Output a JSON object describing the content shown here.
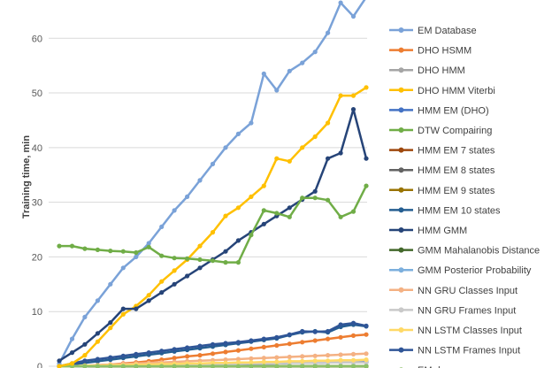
{
  "chart_data": {
    "type": "line",
    "ylabel": "Training time, min",
    "ylim": [
      0,
      67
    ],
    "yticks": [
      0,
      10,
      20,
      30,
      40,
      50,
      60
    ],
    "grid": true,
    "legend_position": "right",
    "series": [
      {
        "name": "EM Database",
        "color": "#7aa2d8",
        "values": []
      },
      {
        "name": "DHO HSMM",
        "color": "#ed7d31",
        "values": []
      },
      {
        "name": "DHO HMM",
        "color": "#a5a5a5",
        "values": []
      },
      {
        "name": "DHO HMM Viterbi",
        "color": "#ffc000",
        "values": []
      },
      {
        "name": "HMM EM (DHO)",
        "color": "#4472c4",
        "values": []
      },
      {
        "name": "DTW Compairing",
        "color": "#70ad47",
        "values": []
      },
      {
        "name": "HMM EM 7 states",
        "color": "#9e480e",
        "values": []
      },
      {
        "name": "HMM EM 8 states",
        "color": "#636363",
        "values": []
      },
      {
        "name": "HMM EM 9 states",
        "color": "#997300",
        "values": []
      },
      {
        "name": "HMM EM 10 states",
        "color": "#255e91",
        "values": []
      },
      {
        "name": "HMM GMM",
        "color": "#264478",
        "values": []
      },
      {
        "name": "GMM Mahalanobis Distance",
        "color": "#43682b",
        "values": []
      },
      {
        "name": "GMM Posterior Probability",
        "color": "#7cafdd",
        "values": []
      },
      {
        "name": "NN GRU Classes Input",
        "color": "#f4b183",
        "values": []
      },
      {
        "name": "NN GRU Frames Input",
        "color": "#c9c9c9",
        "values": []
      },
      {
        "name": "NN LSTM Classes Input",
        "color": "#ffd966",
        "values": []
      },
      {
        "name": "NN LSTM Frames Input",
        "color": "#2f5597",
        "values": []
      },
      {
        "name": "EM dupa",
        "color": "#8cc168",
        "values": []
      }
    ]
  }
}
